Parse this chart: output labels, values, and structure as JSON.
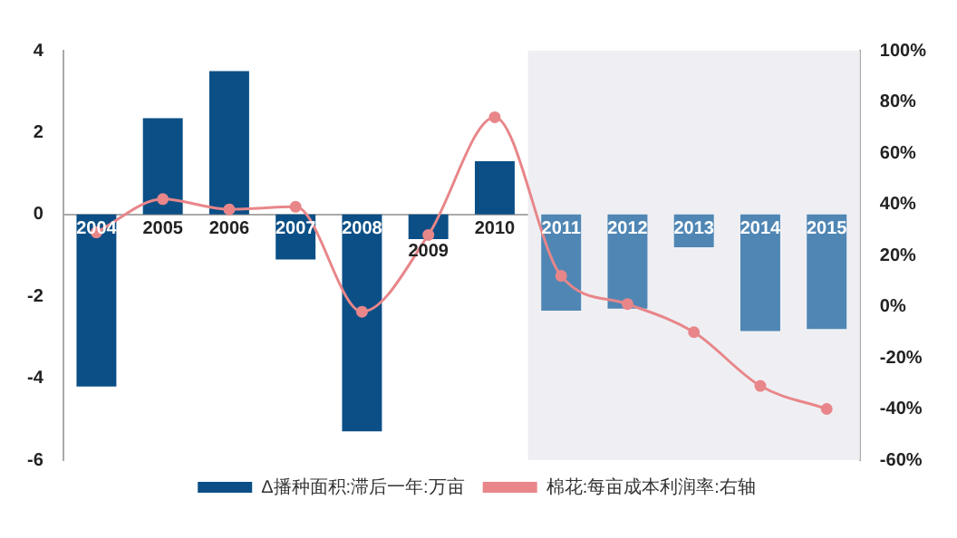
{
  "chart_data": {
    "type": "bar",
    "categories": [
      "2004",
      "2005",
      "2006",
      "2007",
      "2008",
      "2009",
      "2010",
      "2011",
      "2012",
      "2013",
      "2014",
      "2015"
    ],
    "series": [
      {
        "name": "Δ播种面积:滞后一年:万亩",
        "color": "#0b4f86",
        "colors": [
          "#0b4f86",
          "#0b4f86",
          "#0b4f86",
          "#0b4f86",
          "#0b4f86",
          "#0b4f86",
          "#0b4f86",
          "#4f86b4",
          "#4f86b4",
          "#4f86b4",
          "#4f86b4",
          "#4f86b4"
        ],
        "values": [
          -4.2,
          2.35,
          3.5,
          -1.1,
          -5.3,
          -0.6,
          1.3,
          -2.35,
          -2.3,
          -0.8,
          -2.85,
          -2.8
        ]
      },
      {
        "name": "棉花:每亩成本利润率:右轴",
        "type": "line",
        "axis": "y2",
        "color": "#e8868a",
        "marker": "circle",
        "values": [
          29,
          42,
          38,
          39,
          -2,
          28,
          74,
          12,
          1,
          -10,
          -31,
          -40
        ]
      }
    ],
    "ylim": [
      -6,
      4
    ],
    "yticks": [
      -6,
      -4,
      -2,
      0,
      2,
      4
    ],
    "y2lim": [
      -60,
      100
    ],
    "y2ticks": [
      {
        "value": -60,
        "label": "-60%"
      },
      {
        "value": -40,
        "label": "-40%"
      },
      {
        "value": -20,
        "label": "-20%"
      },
      {
        "value": 0,
        "label": "0%"
      },
      {
        "value": 20,
        "label": "20%"
      },
      {
        "value": 40,
        "label": "40%"
      },
      {
        "value": 60,
        "label": "60%"
      },
      {
        "value": 80,
        "label": "80%"
      },
      {
        "value": 100,
        "label": "100%"
      }
    ],
    "bands": [
      {
        "axis": "x",
        "from": "2011",
        "to": "2015",
        "color": "#efeff3"
      }
    ],
    "grid": false,
    "legend": "bottom"
  }
}
